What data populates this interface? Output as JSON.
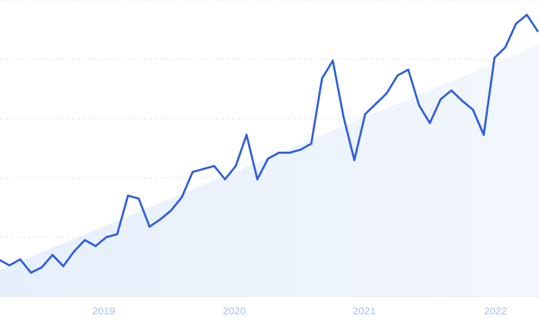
{
  "chart_data": {
    "type": "line",
    "title": "",
    "xlabel": "",
    "ylabel": "",
    "x_ticks": [
      "2019",
      "2020",
      "2021",
      "2022"
    ],
    "y_grid_count": 5,
    "grid": true,
    "ylim": [
      0,
      100
    ],
    "series": [
      {
        "color": "#2f5fdd",
        "values": [
          12.5,
          10.5,
          12.5,
          8.0,
          9.8,
          14.0,
          10.2,
          15.2,
          19.0,
          17.0,
          20.0,
          21.0,
          34.0,
          33.0,
          23.5,
          26.0,
          29.0,
          33.5,
          42.0,
          43.0,
          44.0,
          39.5,
          44.0,
          54.5,
          39.5,
          46.5,
          48.5,
          48.5,
          49.5,
          51.5,
          73.5,
          79.5,
          60.5,
          46.0,
          61.5,
          65.0,
          68.5,
          74.5,
          76.5,
          64.5,
          58.5,
          66.5,
          69.5,
          66.0,
          63.0,
          54.5,
          80.5,
          84.0,
          92.0,
          95.0,
          89.5
        ]
      }
    ],
    "trend_area": {
      "start": 9.0,
      "end": 85.0,
      "color": "#e8f1fd"
    }
  }
}
